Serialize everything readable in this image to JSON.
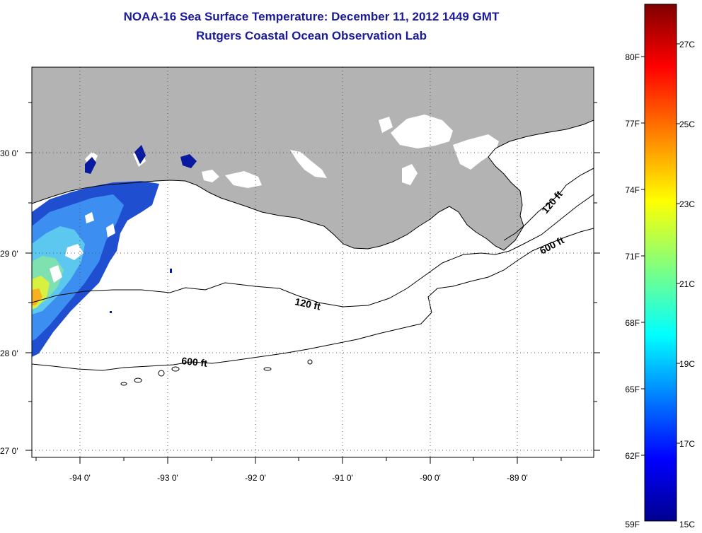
{
  "title_line1": "NOAA-16 Sea Surface Temperature:  December 11, 2012 1449 GMT",
  "title_line2": "Rutgers Coastal Ocean Observation Lab",
  "lat_labels": [
    "30 0'",
    "29 0'",
    "28 0'",
    "27 0'"
  ],
  "lon_labels": [
    "-94 0'",
    "-93 0'",
    "-92 0'",
    "-91 0'",
    "-90 0'",
    "-89 0'"
  ],
  "contour_labels": [
    "120 ft",
    "600 ft",
    "120 ft",
    "600 ft"
  ],
  "colorbar": {
    "f_labels": [
      "80F",
      "77F",
      "74F",
      "71F",
      "68F",
      "65F",
      "62F",
      "59F"
    ],
    "c_labels": [
      "27C",
      "25C",
      "23C",
      "21C",
      "19C",
      "17C",
      "15C"
    ]
  },
  "colors": {
    "land": "#b3b3b3",
    "title": "#1a1a9a",
    "frame": "#000000"
  }
}
